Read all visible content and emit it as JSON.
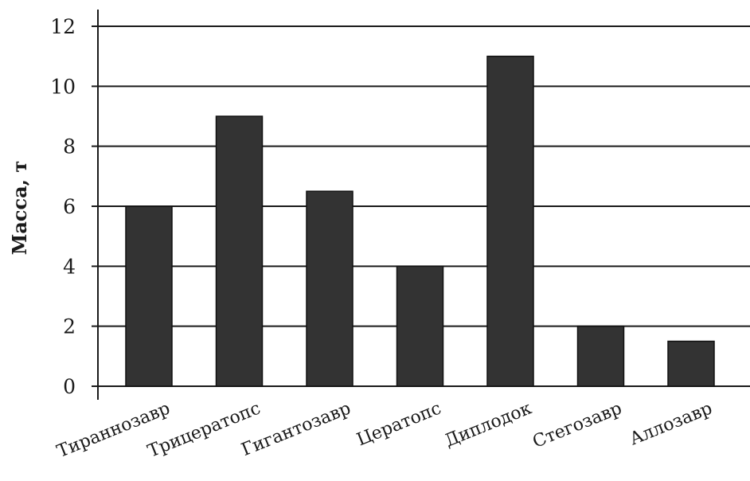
{
  "chart_data": {
    "type": "bar",
    "title": "",
    "xlabel": "",
    "ylabel": "Масса, т",
    "categories": [
      "Тираннозавр",
      "Трицератопс",
      "Гигантозавр",
      "Цератопс",
      "Диплодок",
      "Стегозавр",
      "Аллозавр"
    ],
    "values": [
      6,
      9,
      6.5,
      4,
      11,
      2,
      1.5
    ],
    "ylim": [
      0,
      12
    ],
    "yticks": [
      0,
      2,
      4,
      6,
      8,
      10,
      12
    ],
    "grid": true,
    "legend": "none",
    "bar_color": "#333333",
    "grid_color": "#1a1a1a"
  }
}
